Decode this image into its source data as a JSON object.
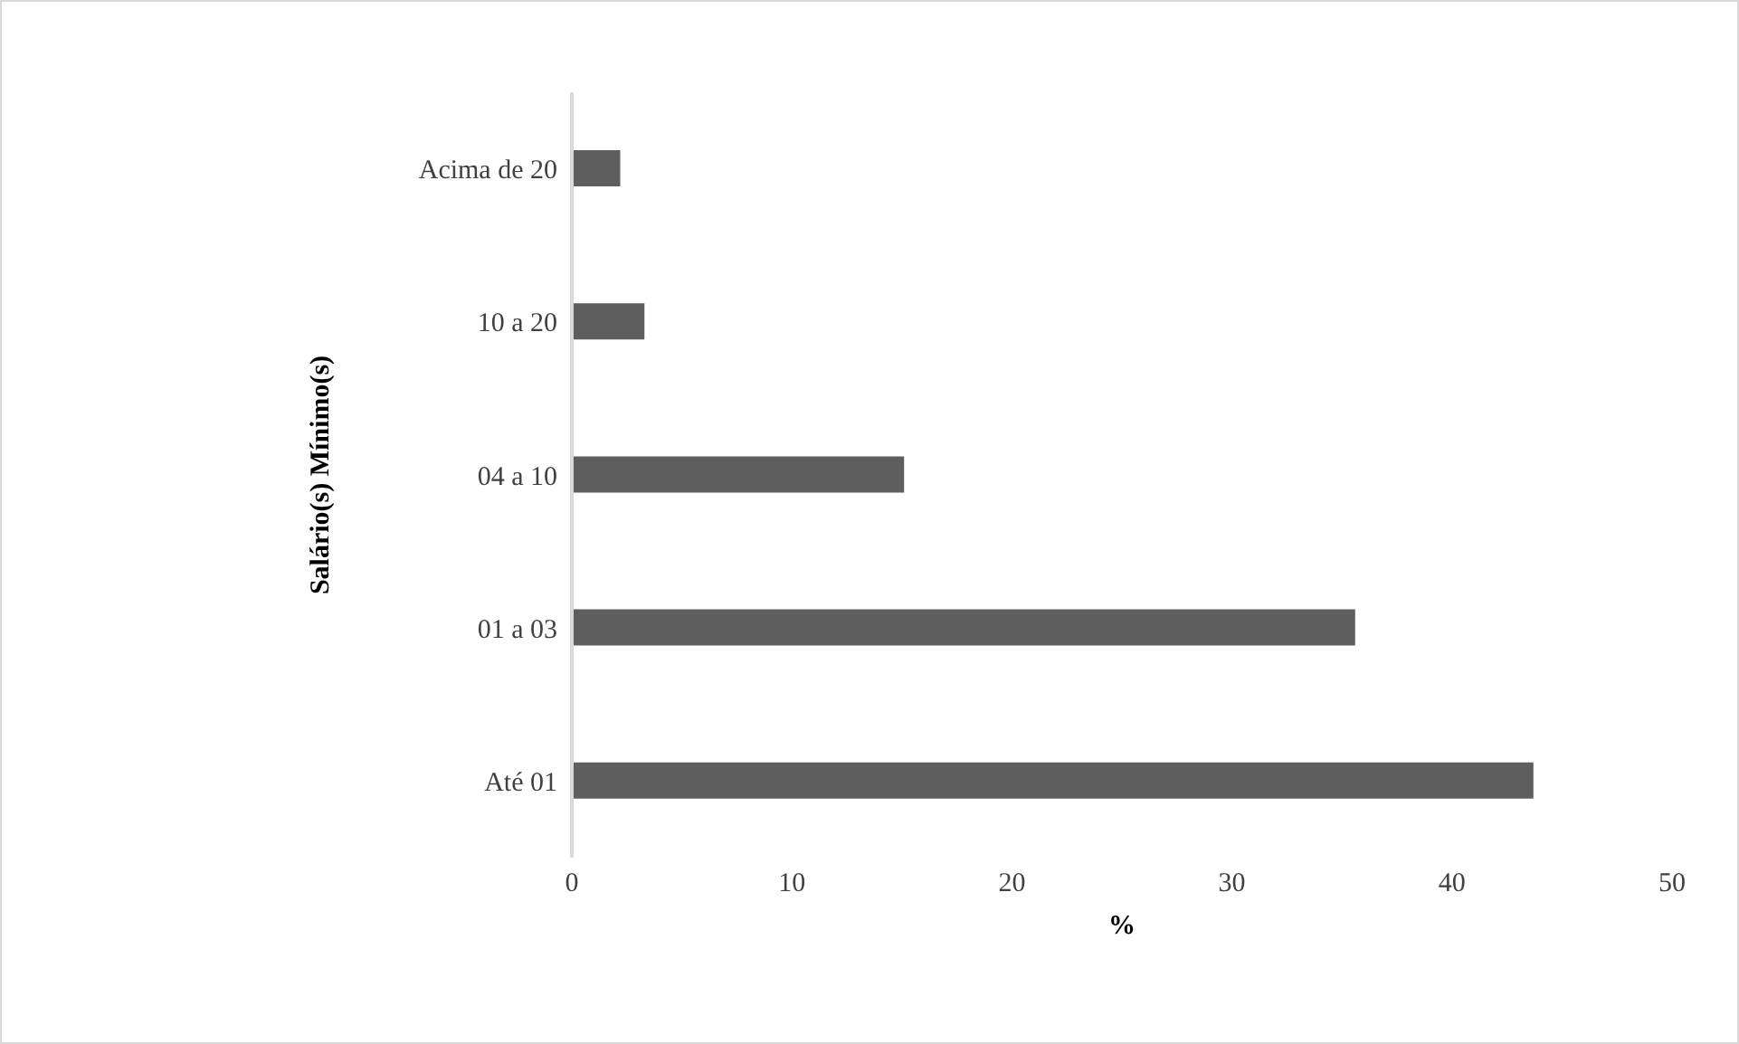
{
  "chart_data": {
    "type": "bar",
    "orientation": "horizontal",
    "xlabel": "%",
    "ylabel": "Salário(s) Mínimo(s)",
    "categories": [
      "Acima de 20",
      "10 a 20",
      "04 a 10",
      "01 a 03",
      "Até 01"
    ],
    "values": [
      2.2,
      3.3,
      15.1,
      35.6,
      43.7
    ],
    "color": "#5e5e5e",
    "xlim": [
      0,
      50
    ],
    "xticks": [
      0,
      10,
      20,
      30,
      40,
      50
    ],
    "grid": false,
    "legend": false
  }
}
